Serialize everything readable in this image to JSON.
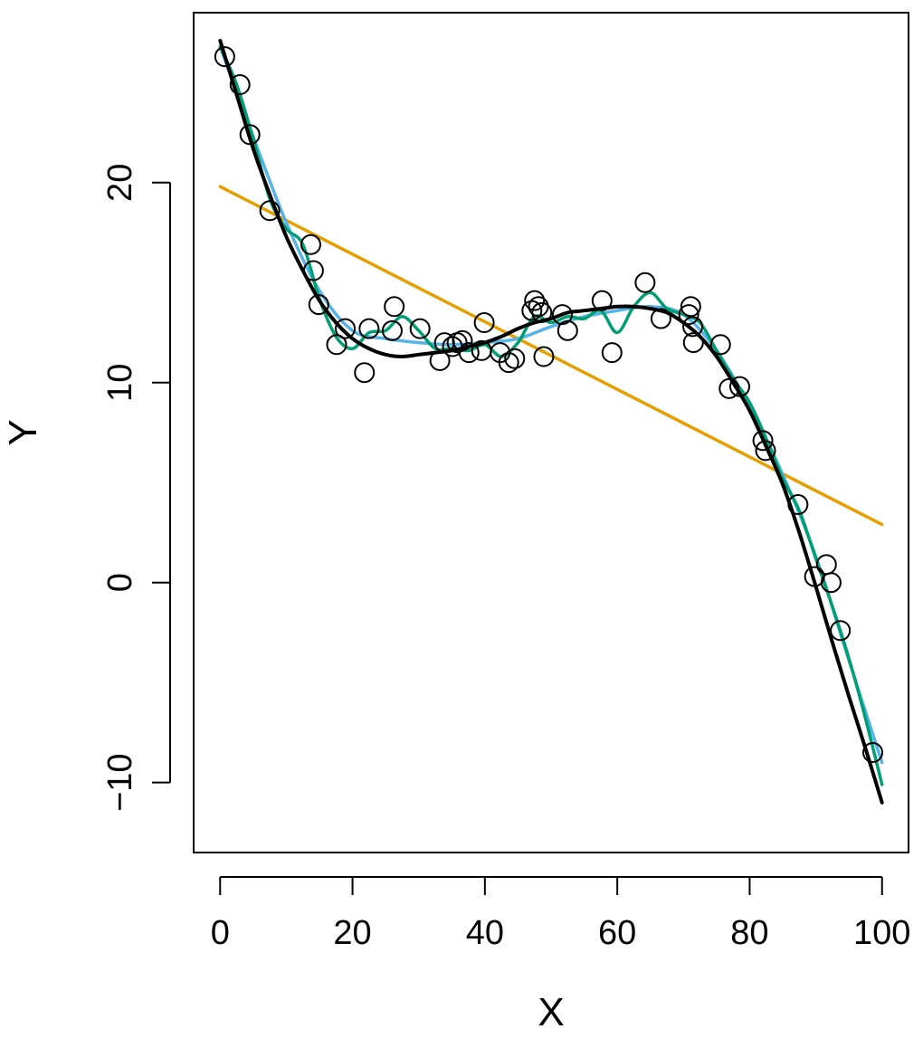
{
  "chart_data": {
    "type": "scatter",
    "xlabel": "X",
    "ylabel": "Y",
    "xlim": [
      -4,
      104
    ],
    "ylim": [
      -13.5,
      28.5
    ],
    "xticks": [
      0,
      20,
      40,
      60,
      80,
      100
    ],
    "yticks": [
      -10,
      0,
      10,
      20
    ],
    "xtick_labels": [
      "0",
      "20",
      "40",
      "60",
      "80",
      "100"
    ],
    "ytick_labels": [
      "−10",
      "0",
      "10",
      "20"
    ],
    "grid": false,
    "legend": "none",
    "points": [
      [
        0.7,
        26.3
      ],
      [
        3.0,
        24.9
      ],
      [
        4.5,
        22.4
      ],
      [
        7.5,
        18.6
      ],
      [
        13.7,
        16.9
      ],
      [
        14.1,
        15.6
      ],
      [
        14.9,
        13.9
      ],
      [
        17.6,
        11.9
      ],
      [
        18.9,
        12.7
      ],
      [
        21.8,
        10.5
      ],
      [
        22.5,
        12.7
      ],
      [
        26.0,
        12.6
      ],
      [
        26.3,
        13.8
      ],
      [
        30.2,
        12.7
      ],
      [
        33.2,
        11.1
      ],
      [
        33.9,
        12.0
      ],
      [
        35.1,
        11.8
      ],
      [
        35.8,
        12.0
      ],
      [
        36.6,
        12.1
      ],
      [
        37.6,
        11.5
      ],
      [
        39.5,
        11.6
      ],
      [
        39.9,
        13.0
      ],
      [
        42.3,
        11.5
      ],
      [
        43.6,
        11.0
      ],
      [
        44.5,
        11.2
      ],
      [
        47.1,
        13.6
      ],
      [
        47.5,
        14.1
      ],
      [
        48.1,
        13.8
      ],
      [
        48.6,
        13.5
      ],
      [
        48.9,
        11.3
      ],
      [
        51.7,
        13.4
      ],
      [
        52.5,
        12.6
      ],
      [
        57.7,
        14.1
      ],
      [
        59.2,
        11.5
      ],
      [
        64.2,
        15.0
      ],
      [
        66.6,
        13.2
      ],
      [
        70.8,
        13.4
      ],
      [
        71.1,
        13.8
      ],
      [
        71.4,
        12.8
      ],
      [
        71.5,
        12.0
      ],
      [
        75.6,
        11.9
      ],
      [
        76.9,
        9.7
      ],
      [
        78.5,
        9.8
      ],
      [
        82.0,
        7.1
      ],
      [
        82.4,
        6.6
      ],
      [
        87.3,
        3.9
      ],
      [
        89.8,
        0.3
      ],
      [
        91.6,
        0.9
      ],
      [
        92.3,
        0.0
      ],
      [
        93.7,
        -2.4
      ],
      [
        98.6,
        -8.5
      ]
    ],
    "series": [
      {
        "color": "#E69F00",
        "x": [
          0,
          100
        ],
        "y": [
          19.8,
          2.9
        ]
      },
      {
        "color": "#56B4E9",
        "x": [
          0,
          5,
          10,
          15,
          20,
          25,
          30,
          35,
          40,
          45,
          50,
          55,
          60,
          65,
          70,
          75,
          80,
          85,
          90,
          95,
          100
        ],
        "y": [
          26.8,
          22.3,
          18.0,
          14.6,
          12.6,
          12.2,
          12.0,
          11.9,
          12.0,
          12.2,
          12.8,
          13.3,
          13.6,
          13.8,
          13.4,
          11.6,
          8.8,
          5.4,
          1.3,
          -3.9,
          -9.0
        ]
      },
      {
        "color": "#009E73",
        "x": [
          0,
          2.5,
          5,
          7.5,
          10,
          12.5,
          15,
          17.5,
          20,
          22.5,
          25,
          27.5,
          30,
          32.5,
          35,
          37.5,
          40,
          42.5,
          45,
          47.5,
          50,
          52.5,
          55,
          57.5,
          60,
          62.5,
          65,
          67.5,
          70,
          72.5,
          75,
          77.5,
          80,
          82.5,
          85,
          87.5,
          90,
          92.5,
          95,
          97.5,
          100
        ],
        "y": [
          26.8,
          24.9,
          22.2,
          19.2,
          17.7,
          16.9,
          14.2,
          12.3,
          11.7,
          12.5,
          12.6,
          13.3,
          12.6,
          11.7,
          11.7,
          11.6,
          11.9,
          11.3,
          12.0,
          13.3,
          13.0,
          13.3,
          13.2,
          13.6,
          12.5,
          13.8,
          14.5,
          13.7,
          13.4,
          13.0,
          11.6,
          10.2,
          9.0,
          7.2,
          5.2,
          3.6,
          1.2,
          -1.2,
          -3.8,
          -6.8,
          -10.1
        ]
      },
      {
        "color": "#000000",
        "x": [
          0,
          2.5,
          5,
          7.5,
          10,
          12.5,
          15,
          17.5,
          20,
          22.5,
          25,
          27.5,
          30,
          32.5,
          35,
          37.5,
          40,
          42.5,
          45,
          47.5,
          50,
          52.5,
          55,
          57.5,
          60,
          62.5,
          65,
          67.5,
          70,
          72.5,
          75,
          77.5,
          80,
          82.5,
          85,
          87.5,
          90,
          92.5,
          95,
          97.5,
          100
        ],
        "y": [
          27.1,
          24.4,
          21.7,
          19.4,
          17.3,
          15.6,
          14.1,
          13.0,
          12.2,
          11.7,
          11.4,
          11.3,
          11.4,
          11.5,
          11.6,
          11.8,
          12.0,
          12.3,
          12.7,
          13.0,
          13.2,
          13.5,
          13.6,
          13.7,
          13.8,
          13.8,
          13.7,
          13.5,
          13.0,
          12.3,
          11.3,
          10.0,
          8.6,
          6.8,
          4.9,
          2.5,
          -0.2,
          -3.0,
          -5.7,
          -8.3,
          -11.0
        ]
      }
    ]
  }
}
